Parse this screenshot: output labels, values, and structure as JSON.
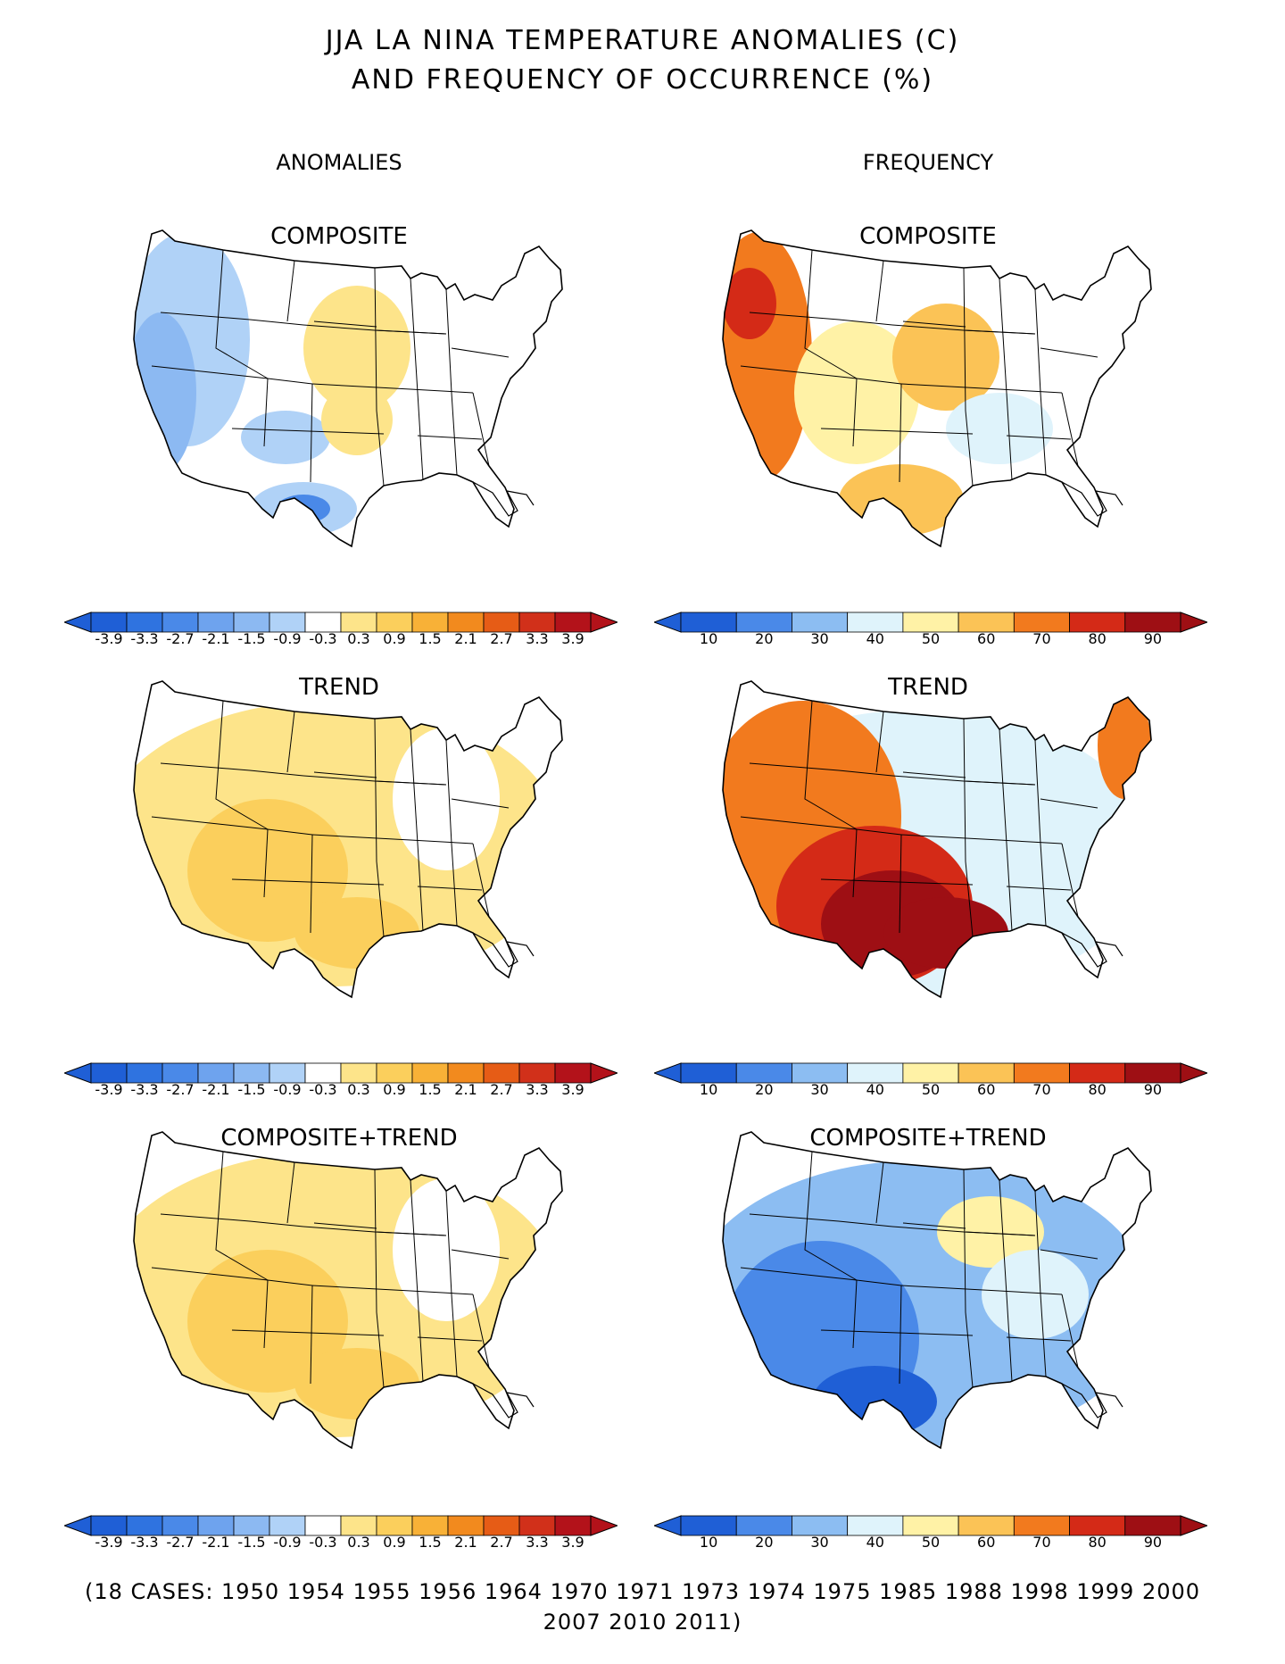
{
  "title": {
    "line1": "JJA LA NINA TEMPERATURE ANOMALIES (C)",
    "line2": "AND FREQUENCY OF OCCURRENCE (%)"
  },
  "columns": {
    "left": "ANOMALIES",
    "right": "FREQUENCY"
  },
  "panels": {
    "anom_composite": {
      "label": "COMPOSITE",
      "fill": "mixed-cool-warm"
    },
    "anom_trend": {
      "label": "TREND",
      "fill": "warm-light"
    },
    "anom_comptrend": {
      "label": "COMPOSITE+TREND",
      "fill": "warm-light"
    },
    "freq_composite": {
      "label": "COMPOSITE",
      "fill": "mixed-freq"
    },
    "freq_trend": {
      "label": "TREND",
      "fill": "hot"
    },
    "freq_comptrend": {
      "label": "COMPOSITE+TREND",
      "fill": "cool-freq"
    }
  },
  "anomaly_scale": {
    "ticks": [
      "-3.9",
      "-3.3",
      "-2.7",
      "-2.1",
      "-1.5",
      "-0.9",
      "-0.3",
      "0.3",
      "0.9",
      "1.5",
      "2.1",
      "2.7",
      "3.3",
      "3.9"
    ],
    "colors": [
      "#1f5fd6",
      "#2f73e0",
      "#4a89e8",
      "#6ea3ee",
      "#8cb9f2",
      "#b0d2f7",
      "#ffffff",
      "#fde48a",
      "#fbcf5c",
      "#f8b137",
      "#f28a1e",
      "#e65c16",
      "#d1301a",
      "#b3121a"
    ]
  },
  "frequency_scale": {
    "ticks": [
      "10",
      "20",
      "30",
      "40",
      "50",
      "60",
      "70",
      "80",
      "90"
    ],
    "colors": [
      "#1f5fd6",
      "#4a89e8",
      "#8cbdf2",
      "#dff3fb",
      "#fff2a6",
      "#fbc356",
      "#f27a1e",
      "#d42a17",
      "#9e0f14"
    ]
  },
  "footer": {
    "line1": "(18 CASES:  1950 1954 1955 1956 1964 1970 1971 1973 1974 1975 1985 1988 1998 1999 2000",
    "line2": "2007 2010 2011)"
  }
}
